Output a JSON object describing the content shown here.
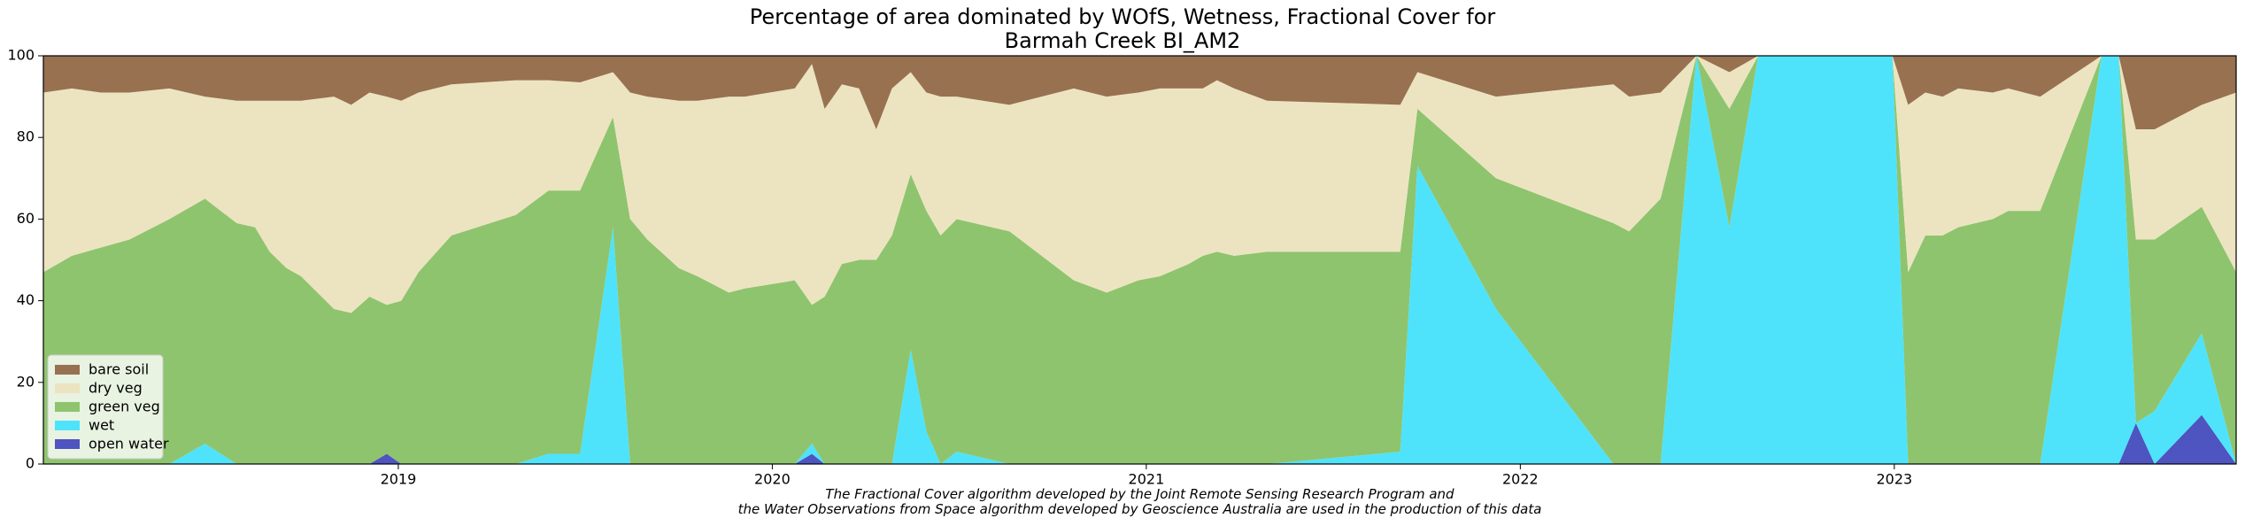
{
  "chart_data": {
    "type": "stacked_area",
    "title": "Percentage of area dominated by WOfS, Wetness, Fractional Cover for\nBarmah Creek BI_AM2",
    "annotation": "The Fractional Cover algorithm developed by the Joint Remote Sensing Research Program and\nthe Water Observations from Space algorithm developed by Geoscience Australia are used in the production of this data",
    "x": [
      2018.051,
      2018.127,
      2018.204,
      2018.281,
      2018.388,
      2018.483,
      2018.568,
      2018.617,
      2018.656,
      2018.701,
      2018.74,
      2018.828,
      2018.874,
      2018.923,
      2018.969,
      2019.008,
      2019.054,
      2019.142,
      2019.314,
      2019.402,
      2019.486,
      2019.574,
      2019.62,
      2019.666,
      2019.75,
      2019.8,
      2019.884,
      2019.926,
      2020.06,
      2020.106,
      2020.14,
      2020.186,
      2020.232,
      2020.278,
      2020.32,
      2020.37,
      2020.412,
      2020.45,
      2020.493,
      2020.634,
      2020.806,
      2020.894,
      2020.979,
      2021.036,
      2021.113,
      2021.151,
      2021.189,
      2021.235,
      2021.323,
      2021.679,
      2021.725,
      2021.935,
      2022.249,
      2022.291,
      2022.375,
      2022.471,
      2022.559,
      2022.636,
      2022.995,
      2023.037,
      2023.083,
      2023.129,
      2023.171,
      2023.263,
      2023.305,
      2023.39,
      2023.554,
      2023.6,
      2023.646,
      2023.696,
      2023.822,
      2023.914
    ],
    "series": [
      {
        "name": "open water",
        "color": "#4e54c0",
        "values": [
          0,
          0,
          0,
          0,
          0,
          0,
          0,
          0,
          0,
          0,
          0,
          0,
          0,
          0,
          2.5,
          0,
          0,
          0,
          0,
          0,
          0,
          0,
          0,
          0,
          0,
          0,
          0,
          0,
          0,
          2.5,
          0,
          0,
          0,
          0,
          0,
          0,
          0,
          0,
          0,
          0,
          0,
          0,
          0,
          0,
          0,
          0,
          0,
          0,
          0,
          0,
          0,
          0,
          0,
          0,
          0,
          0,
          0,
          0,
          0,
          0,
          0,
          0,
          0,
          0,
          0,
          0,
          0,
          0,
          10,
          0,
          12,
          0
        ]
      },
      {
        "name": "wet",
        "color": "#4fe3fb",
        "values": [
          0,
          0,
          0,
          0,
          0,
          5,
          0,
          0,
          0,
          0,
          0,
          0,
          0,
          0,
          0,
          0,
          0,
          0,
          0,
          2.5,
          2.5,
          58,
          0,
          0,
          0,
          0,
          0,
          0,
          0,
          2.5,
          0,
          0,
          0,
          0,
          0,
          28,
          8,
          0,
          3,
          0,
          0,
          0,
          0,
          0,
          0,
          0,
          0,
          0,
          0,
          3,
          73,
          38,
          0,
          0,
          0,
          100,
          58,
          100,
          100,
          0,
          0,
          0,
          0,
          0,
          0,
          0,
          100,
          100,
          0,
          13,
          20,
          0
        ]
      },
      {
        "name": "green veg",
        "color": "#8ec46e",
        "values": [
          47,
          51,
          53,
          55,
          60,
          60,
          59,
          58,
          52,
          48,
          46,
          38,
          37,
          41,
          36.5,
          40,
          47,
          56,
          61,
          64.5,
          64.5,
          27,
          60,
          55,
          48,
          46,
          42,
          43,
          45,
          34,
          41,
          49,
          50,
          50,
          56,
          43,
          54,
          56,
          57,
          57,
          45,
          42,
          45,
          46,
          49,
          51,
          52,
          51,
          52,
          49,
          14,
          32,
          59,
          57,
          65,
          0,
          29,
          0,
          0,
          47,
          56,
          56,
          58,
          60,
          62,
          62,
          0,
          0,
          45,
          42,
          31,
          47
        ]
      },
      {
        "name": "dry veg",
        "color": "#ece4c0",
        "values": [
          44,
          41,
          38,
          36,
          32,
          25,
          30,
          31,
          37,
          41,
          43,
          52,
          51,
          50,
          51,
          49,
          44,
          37,
          33,
          27,
          26.5,
          11,
          31,
          35,
          41,
          43,
          48,
          47,
          47,
          59,
          46,
          44,
          42,
          32,
          36,
          25,
          29,
          34,
          30,
          31,
          47,
          48,
          46,
          46,
          43,
          41,
          42,
          41,
          37,
          36,
          9,
          20,
          34,
          33,
          26,
          0,
          9,
          0,
          0,
          41,
          35,
          34,
          34,
          31,
          30,
          28,
          0,
          0,
          27,
          27,
          25,
          44
        ]
      },
      {
        "name": "bare soil",
        "color": "#987150",
        "values": [
          9,
          8,
          9,
          9,
          8,
          10,
          11,
          11,
          11,
          11,
          11,
          10,
          12,
          9,
          10,
          11,
          9,
          7,
          6,
          6,
          6.5,
          4,
          9,
          10,
          11,
          11,
          10,
          10,
          8,
          2,
          13,
          7,
          8,
          18,
          8,
          4,
          9,
          10,
          10,
          12,
          8,
          10,
          9,
          8,
          8,
          8,
          6,
          8,
          11,
          12,
          4,
          10,
          7,
          10,
          9,
          0,
          4,
          0,
          0,
          12,
          9,
          10,
          8,
          9,
          8,
          10,
          0,
          0,
          18,
          18,
          12,
          9
        ]
      }
    ],
    "xlim": [
      2018.051,
      2023.914
    ],
    "xticks": [
      2019,
      2020,
      2021,
      2022,
      2023
    ],
    "ylim": [
      0,
      100
    ],
    "yticks": [
      0,
      20,
      40,
      60,
      80,
      100
    ],
    "legend": "lower left"
  }
}
